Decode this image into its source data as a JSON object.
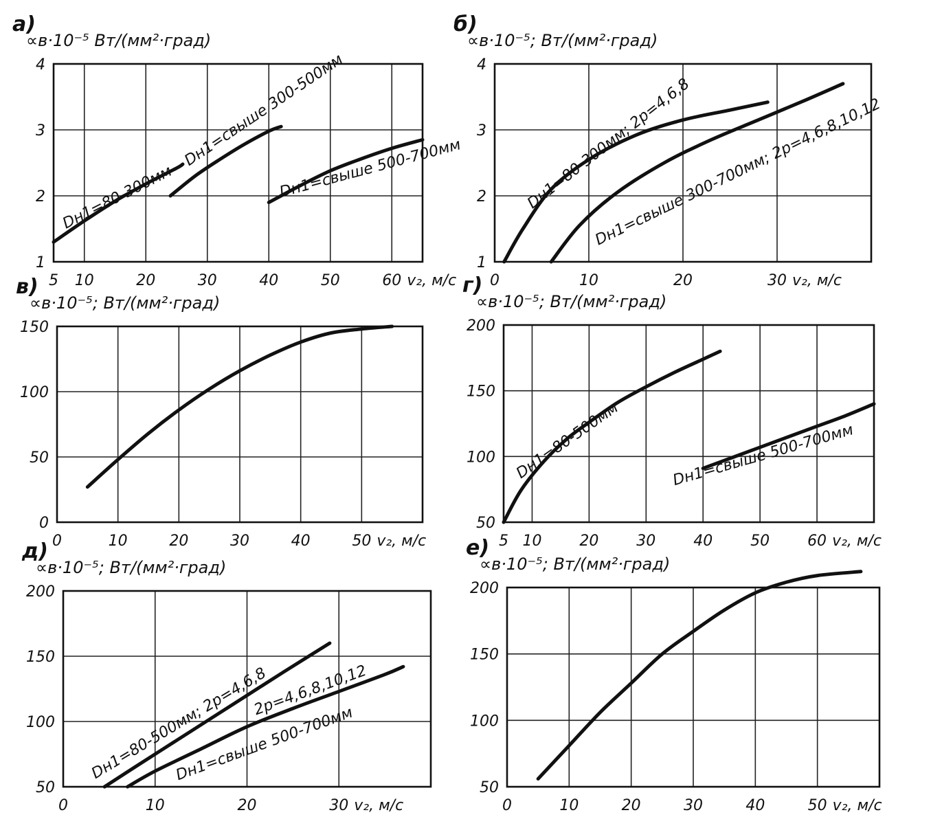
{
  "chart_data": [
    {
      "id": "a",
      "panel_label": "а)",
      "type": "line",
      "ylabel": "∝в·10⁻⁵ Вт/(мм²·град)",
      "xlabel": "v₂, м/с",
      "xlim": [
        5,
        65
      ],
      "ylim": [
        1,
        4
      ],
      "xgrid": [
        10,
        20,
        30,
        40,
        50,
        60
      ],
      "ygrid": [
        2,
        3
      ],
      "xticks": [
        "5",
        "10",
        "20",
        "30",
        "40",
        "50",
        "60"
      ],
      "xtick_values": [
        5,
        10,
        20,
        30,
        40,
        50,
        60
      ],
      "yticks": [
        "1",
        "2",
        "3",
        "4"
      ],
      "ytick_values": [
        1,
        2,
        3,
        4
      ],
      "series": [
        {
          "name": "Dн1=80-300мм",
          "x": [
            5,
            10,
            15,
            20,
            25,
            26
          ],
          "y": [
            1.3,
            1.62,
            1.92,
            2.18,
            2.42,
            2.48
          ],
          "label_at": [
            7,
            1.5
          ],
          "label_angle": -27
        },
        {
          "name": "Dн1=свыше 300-500мм",
          "x": [
            24,
            28,
            32,
            36,
            40,
            42
          ],
          "y": [
            2.0,
            2.3,
            2.55,
            2.78,
            2.98,
            3.05
          ],
          "label_at": [
            27,
            2.45
          ],
          "label_angle": -34
        },
        {
          "name": "Dн1=свыше 500-700мм",
          "x": [
            40,
            45,
            50,
            55,
            60,
            65
          ],
          "y": [
            1.9,
            2.15,
            2.38,
            2.56,
            2.72,
            2.85
          ],
          "label_at": [
            42,
            1.98
          ],
          "label_angle": -15
        }
      ]
    },
    {
      "id": "b",
      "panel_label": "б)",
      "type": "line",
      "ylabel": "∝в·10⁻⁵; Вт/(мм²·град)",
      "xlabel": "v₂, м/с",
      "xlim": [
        0,
        40
      ],
      "ylim": [
        1,
        4
      ],
      "xgrid": [
        10,
        20,
        30
      ],
      "ygrid": [
        2,
        3
      ],
      "xticks": [
        "0",
        "10",
        "20",
        "30"
      ],
      "xtick_values": [
        0,
        10,
        20,
        30
      ],
      "yticks": [
        "1",
        "2",
        "3",
        "4"
      ],
      "ytick_values": [
        1,
        2,
        3,
        4
      ],
      "series": [
        {
          "name": "Dн1=80-300мм; 2p=4,6,8",
          "x": [
            1,
            3,
            6,
            10,
            15,
            20,
            25,
            29
          ],
          "y": [
            1.0,
            1.5,
            2.1,
            2.55,
            2.92,
            3.15,
            3.3,
            3.42
          ],
          "label_at": [
            4,
            1.8
          ],
          "label_angle": -38
        },
        {
          "name": "Dн1=свыше 300-700мм; 2p=4,6,8,10,12",
          "x": [
            6,
            9,
            13,
            18,
            23,
            28,
            33,
            37
          ],
          "y": [
            1.0,
            1.55,
            2.05,
            2.5,
            2.85,
            3.15,
            3.45,
            3.7
          ],
          "label_at": [
            11,
            1.25
          ],
          "label_angle": -26
        }
      ]
    },
    {
      "id": "v",
      "panel_label": "в)",
      "type": "line",
      "ylabel": "∝в·10⁻⁵; Вт/(мм²·град)",
      "xlabel": "v₂, м/с",
      "xlim": [
        0,
        60
      ],
      "ylim": [
        0,
        150
      ],
      "xgrid": [
        10,
        20,
        30,
        40,
        50
      ],
      "ygrid": [
        50,
        100
      ],
      "xticks": [
        "0",
        "10",
        "20",
        "30",
        "40",
        "50"
      ],
      "xtick_values": [
        0,
        10,
        20,
        30,
        40,
        50
      ],
      "yticks": [
        "0",
        "50",
        "100",
        "150"
      ],
      "ytick_values": [
        0,
        50,
        100,
        150
      ],
      "series": [
        {
          "x": [
            5,
            10,
            15,
            20,
            25,
            30,
            35,
            40,
            45,
            50,
            55
          ],
          "y": [
            27,
            48,
            68,
            86,
            102,
            116,
            128,
            138,
            145,
            148,
            150
          ]
        }
      ]
    },
    {
      "id": "g",
      "panel_label": "г)",
      "type": "line",
      "ylabel": "∝в·10⁻⁵; Вт/(мм²·град)",
      "xlabel": "v₂, м/с",
      "xlim": [
        5,
        70
      ],
      "ylim": [
        50,
        200
      ],
      "xgrid": [
        10,
        20,
        30,
        40,
        50,
        60
      ],
      "ygrid": [
        100,
        150
      ],
      "xticks": [
        "5",
        "10",
        "20",
        "30",
        "40",
        "50",
        "60"
      ],
      "xtick_values": [
        5,
        10,
        20,
        30,
        40,
        50,
        60
      ],
      "yticks": [
        "50",
        "100",
        "150",
        "200"
      ],
      "ytick_values": [
        50,
        100,
        150,
        200
      ],
      "series": [
        {
          "name": "Dн1=80-500мм",
          "x": [
            5,
            8,
            12,
            16,
            20,
            25,
            30,
            35,
            40,
            43
          ],
          "y": [
            50,
            74,
            96,
            113,
            126,
            141,
            153,
            164,
            174,
            180
          ],
          "label_at": [
            8,
            83
          ],
          "label_angle": -35
        },
        {
          "name": "Dн1=свыше 500-700мм",
          "x": [
            40,
            45,
            50,
            55,
            60,
            65,
            70
          ],
          "y": [
            91,
            99,
            107,
            115,
            123,
            131,
            140
          ],
          "label_at": [
            35,
            78
          ],
          "label_angle": -16
        }
      ]
    },
    {
      "id": "d",
      "panel_label": "д)",
      "type": "line",
      "ylabel": "∝в·10⁻⁵; Вт/(мм²·град)",
      "xlabel": "v₂, м/с",
      "xlim": [
        0,
        40
      ],
      "ylim": [
        50,
        200
      ],
      "xgrid": [
        10,
        20,
        30
      ],
      "ygrid": [
        100,
        150
      ],
      "xticks": [
        "0",
        "10",
        "20",
        "30"
      ],
      "xtick_values": [
        0,
        10,
        20,
        30
      ],
      "yticks": [
        "50",
        "100",
        "150",
        "200"
      ],
      "ytick_values": [
        50,
        100,
        150,
        200
      ],
      "series": [
        {
          "name": "Dн1=80-500мм; 2p=4,6,8",
          "x": [
            4.5,
            8,
            12,
            16,
            20,
            24,
            29
          ],
          "y": [
            50,
            66,
            84,
            102,
            120,
            138,
            160
          ],
          "label_at": [
            3.5,
            56
          ],
          "label_angle": -31
        },
        {
          "name": "Dн1=свыше 500-700мм",
          "x": [
            7,
            10,
            15,
            20,
            25,
            30,
            35,
            37
          ],
          "y": [
            50,
            62,
            79,
            96,
            110,
            123,
            136,
            142
          ],
          "label_at": [
            12.5,
            55
          ],
          "label_angle": -20
        },
        {
          "name": "2p=4,6,8,10,12",
          "x": [],
          "y": [],
          "label_at": [
            21,
            105
          ],
          "label_angle": -20
        }
      ]
    },
    {
      "id": "e",
      "panel_label": "е)",
      "type": "line",
      "ylabel": "∝в·10⁻⁵; Вт/(мм²·град)",
      "xlabel": "v₂, м/с",
      "xlim": [
        0,
        60
      ],
      "ylim": [
        50,
        200
      ],
      "xgrid": [
        10,
        20,
        30,
        40,
        50
      ],
      "ygrid": [
        100,
        150
      ],
      "xticks": [
        "0",
        "10",
        "20",
        "30",
        "40",
        "50"
      ],
      "xtick_values": [
        0,
        10,
        20,
        30,
        40,
        50
      ],
      "yticks": [
        "50",
        "100",
        "150",
        "200"
      ],
      "ytick_values": [
        50,
        100,
        150,
        200
      ],
      "series": [
        {
          "x": [
            5,
            10,
            15,
            20,
            25,
            30,
            35,
            40,
            45,
            50,
            57
          ],
          "y": [
            56,
            81,
            106,
            128,
            150,
            167,
            183,
            196,
            204,
            209,
            212
          ]
        }
      ]
    }
  ]
}
